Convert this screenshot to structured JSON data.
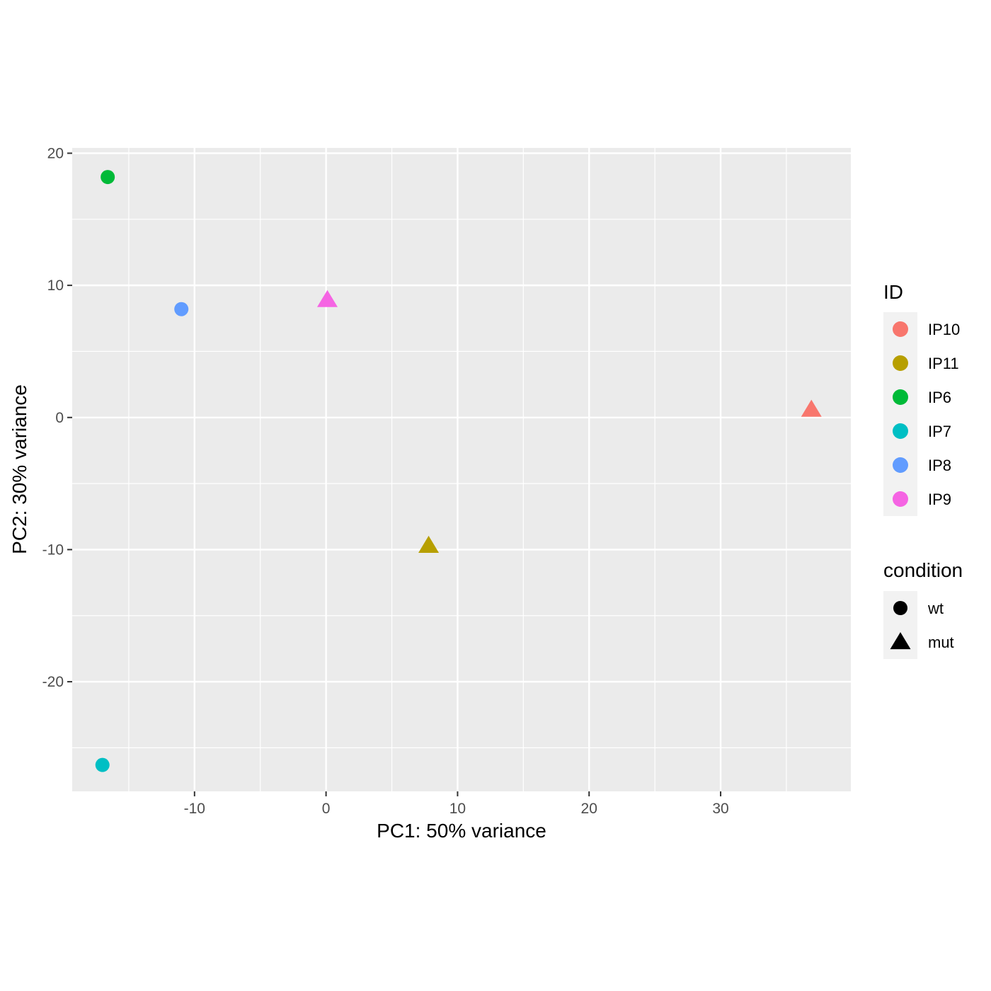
{
  "chart_data": {
    "type": "scatter",
    "xlabel": "PC1: 50% variance",
    "ylabel": "PC2: 30% variance",
    "xlim": [
      -19.3,
      39.9
    ],
    "ylim": [
      -28.3,
      20.4
    ],
    "x_ticks": [
      -10,
      0,
      10,
      20,
      30
    ],
    "y_ticks": [
      20,
      10,
      0,
      -10,
      -20
    ],
    "x_tick_labels": [
      "-10",
      "0",
      "10",
      "20",
      "30"
    ],
    "y_tick_labels": [
      "20",
      "10",
      "0",
      "-10",
      "-20"
    ],
    "grid": true,
    "background": "#ebebeb",
    "points": [
      {
        "id": "IP10",
        "condition": "mut",
        "x": 36.9,
        "y": 0.6
      },
      {
        "id": "IP11",
        "condition": "mut",
        "x": 7.8,
        "y": -9.7
      },
      {
        "id": "IP6",
        "condition": "wt",
        "x": -16.6,
        "y": 18.2
      },
      {
        "id": "IP7",
        "condition": "wt",
        "x": -17.0,
        "y": -26.3
      },
      {
        "id": "IP8",
        "condition": "wt",
        "x": -11.0,
        "y": 8.2
      },
      {
        "id": "IP9",
        "condition": "mut",
        "x": 0.1,
        "y": 8.9
      }
    ],
    "legends": [
      {
        "title": "ID",
        "entries": [
          {
            "label": "IP10",
            "color": "#F8766D"
          },
          {
            "label": "IP11",
            "color": "#B79F00"
          },
          {
            "label": "IP6",
            "color": "#00BA38"
          },
          {
            "label": "IP7",
            "color": "#00BFC4"
          },
          {
            "label": "IP8",
            "color": "#619CFF"
          },
          {
            "label": "IP9",
            "color": "#F564E3"
          }
        ]
      },
      {
        "title": "condition",
        "entries": [
          {
            "label": "wt",
            "shape": "circle"
          },
          {
            "label": "mut",
            "shape": "triangle"
          }
        ]
      }
    ],
    "legend_position": "right"
  }
}
